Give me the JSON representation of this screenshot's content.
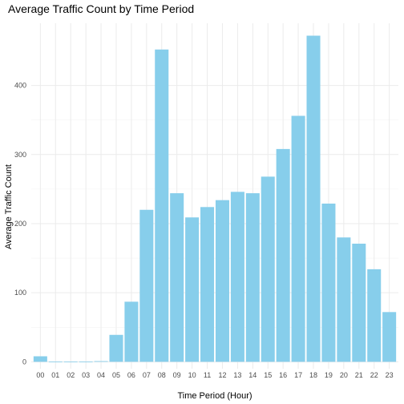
{
  "chart_data": {
    "type": "bar",
    "title": "Average Traffic Count by Time Period",
    "xlabel": "Time Period (Hour)",
    "ylabel": "Average Traffic Count",
    "categories": [
      "00",
      "01",
      "02",
      "03",
      "04",
      "05",
      "06",
      "07",
      "08",
      "09",
      "10",
      "11",
      "12",
      "13",
      "14",
      "15",
      "16",
      "17",
      "18",
      "19",
      "20",
      "21",
      "22",
      "23"
    ],
    "values": [
      8,
      0.3,
      0.3,
      0.3,
      1,
      39,
      87,
      220,
      452,
      244,
      209,
      224,
      234,
      246,
      244,
      268,
      308,
      356,
      472,
      229,
      180,
      171,
      134,
      72
    ],
    "ylim": [
      -10,
      490
    ],
    "yticks": [
      0,
      100,
      200,
      300,
      400
    ],
    "bar_color": "#87ceeb",
    "grid": true,
    "legend": "none"
  }
}
